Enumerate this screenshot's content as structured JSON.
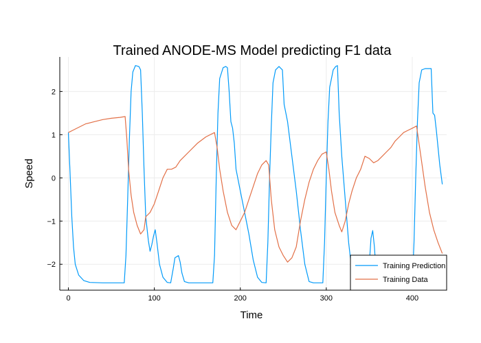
{
  "chart_data": {
    "type": "line",
    "title": "Trained ANODE-MS Model predicting F1 data",
    "xlabel": "Time",
    "ylabel": "Speed",
    "xlim": [
      -10,
      440
    ],
    "ylim": [
      -2.6,
      2.8
    ],
    "xticks": [
      0,
      100,
      200,
      300,
      400
    ],
    "yticks": [
      -2,
      -1,
      0,
      1,
      2
    ],
    "grid": true,
    "legend_position": "bottom-right",
    "series": [
      {
        "name": "Training Prediction",
        "color": "#009af9",
        "points": [
          [
            0,
            1.05
          ],
          [
            2,
            0.1
          ],
          [
            4,
            -0.9
          ],
          [
            6,
            -1.6
          ],
          [
            8,
            -2.0
          ],
          [
            12,
            -2.25
          ],
          [
            18,
            -2.38
          ],
          [
            25,
            -2.42
          ],
          [
            40,
            -2.43
          ],
          [
            55,
            -2.43
          ],
          [
            65,
            -2.43
          ],
          [
            67,
            -1.8
          ],
          [
            69,
            -0.5
          ],
          [
            71,
            0.9
          ],
          [
            73,
            2.0
          ],
          [
            75,
            2.45
          ],
          [
            78,
            2.6
          ],
          [
            82,
            2.58
          ],
          [
            84,
            2.5
          ],
          [
            86,
            1.5
          ],
          [
            88,
            0.2
          ],
          [
            90,
            -0.9
          ],
          [
            93,
            -1.45
          ],
          [
            95,
            -1.7
          ],
          [
            97,
            -1.55
          ],
          [
            99,
            -1.35
          ],
          [
            101,
            -1.2
          ],
          [
            103,
            -1.5
          ],
          [
            106,
            -2.0
          ],
          [
            110,
            -2.3
          ],
          [
            115,
            -2.42
          ],
          [
            119,
            -2.43
          ],
          [
            122,
            -2.1
          ],
          [
            124,
            -1.85
          ],
          [
            128,
            -1.8
          ],
          [
            130,
            -1.95
          ],
          [
            132,
            -2.2
          ],
          [
            135,
            -2.4
          ],
          [
            140,
            -2.43
          ],
          [
            155,
            -2.43
          ],
          [
            168,
            -2.43
          ],
          [
            170,
            -1.8
          ],
          [
            172,
            0.0
          ],
          [
            174,
            1.5
          ],
          [
            176,
            2.3
          ],
          [
            180,
            2.55
          ],
          [
            183,
            2.58
          ],
          [
            185,
            2.55
          ],
          [
            187,
            2.0
          ],
          [
            189,
            1.3
          ],
          [
            191,
            1.15
          ],
          [
            193,
            0.8
          ],
          [
            195,
            0.2
          ],
          [
            200,
            -0.3
          ],
          [
            205,
            -0.8
          ],
          [
            210,
            -1.3
          ],
          [
            215,
            -1.9
          ],
          [
            220,
            -2.3
          ],
          [
            225,
            -2.42
          ],
          [
            230,
            -2.43
          ],
          [
            232,
            -1.5
          ],
          [
            234,
            0.0
          ],
          [
            236,
            1.2
          ],
          [
            238,
            2.2
          ],
          [
            241,
            2.5
          ],
          [
            245,
            2.58
          ],
          [
            249,
            2.5
          ],
          [
            251,
            1.7
          ],
          [
            255,
            1.3
          ],
          [
            260,
            0.5
          ],
          [
            265,
            -0.3
          ],
          [
            270,
            -1.2
          ],
          [
            275,
            -2.0
          ],
          [
            280,
            -2.4
          ],
          [
            285,
            -2.43
          ],
          [
            296,
            -2.43
          ],
          [
            298,
            -1.5
          ],
          [
            300,
            0.0
          ],
          [
            302,
            1.3
          ],
          [
            304,
            2.1
          ],
          [
            306,
            2.3
          ],
          [
            308,
            2.5
          ],
          [
            311,
            2.58
          ],
          [
            313,
            2.6
          ],
          [
            315,
            1.5
          ],
          [
            318,
            0.5
          ],
          [
            322,
            -0.5
          ],
          [
            326,
            -1.5
          ],
          [
            330,
            -2.2
          ],
          [
            335,
            -2.4
          ],
          [
            340,
            -2.43
          ],
          [
            348,
            -2.43
          ],
          [
            350,
            -2.0
          ],
          [
            352,
            -1.4
          ],
          [
            354,
            -1.22
          ],
          [
            356,
            -1.6
          ],
          [
            358,
            -2.2
          ],
          [
            360,
            -2.4
          ],
          [
            365,
            -2.43
          ],
          [
            400,
            -2.43
          ],
          [
            402,
            -1.5
          ],
          [
            404,
            0.0
          ],
          [
            406,
            1.3
          ],
          [
            408,
            2.2
          ],
          [
            411,
            2.5
          ],
          [
            415,
            2.53
          ],
          [
            422,
            2.53
          ],
          [
            424,
            1.5
          ],
          [
            426,
            1.45
          ],
          [
            428,
            1.1
          ],
          [
            432,
            0.3
          ],
          [
            435,
            -0.15
          ]
        ]
      },
      {
        "name": "Training Data",
        "color": "#e26f46",
        "points": [
          [
            0,
            1.05
          ],
          [
            5,
            1.1
          ],
          [
            10,
            1.15
          ],
          [
            20,
            1.25
          ],
          [
            30,
            1.3
          ],
          [
            40,
            1.35
          ],
          [
            50,
            1.38
          ],
          [
            60,
            1.4
          ],
          [
            66,
            1.42
          ],
          [
            68,
            0.9
          ],
          [
            70,
            0.2
          ],
          [
            73,
            -0.4
          ],
          [
            76,
            -0.8
          ],
          [
            80,
            -1.1
          ],
          [
            84,
            -1.3
          ],
          [
            88,
            -1.2
          ],
          [
            90,
            -0.9
          ],
          [
            95,
            -0.8
          ],
          [
            100,
            -0.6
          ],
          [
            105,
            -0.3
          ],
          [
            110,
            0.0
          ],
          [
            115,
            0.2
          ],
          [
            120,
            0.2
          ],
          [
            125,
            0.25
          ],
          [
            130,
            0.4
          ],
          [
            140,
            0.6
          ],
          [
            150,
            0.8
          ],
          [
            160,
            0.95
          ],
          [
            170,
            1.05
          ],
          [
            173,
            0.7
          ],
          [
            176,
            0.2
          ],
          [
            180,
            -0.3
          ],
          [
            185,
            -0.8
          ],
          [
            190,
            -1.1
          ],
          [
            195,
            -1.2
          ],
          [
            200,
            -1.0
          ],
          [
            205,
            -0.8
          ],
          [
            210,
            -0.5
          ],
          [
            215,
            -0.2
          ],
          [
            220,
            0.1
          ],
          [
            225,
            0.3
          ],
          [
            230,
            0.4
          ],
          [
            233,
            0.3
          ],
          [
            236,
            -0.5
          ],
          [
            240,
            -1.2
          ],
          [
            245,
            -1.6
          ],
          [
            250,
            -1.8
          ],
          [
            255,
            -1.95
          ],
          [
            260,
            -1.85
          ],
          [
            265,
            -1.6
          ],
          [
            270,
            -1.0
          ],
          [
            275,
            -0.5
          ],
          [
            280,
            -0.1
          ],
          [
            285,
            0.2
          ],
          [
            290,
            0.4
          ],
          [
            295,
            0.55
          ],
          [
            300,
            0.6
          ],
          [
            303,
            0.2
          ],
          [
            306,
            -0.3
          ],
          [
            310,
            -0.8
          ],
          [
            315,
            -1.1
          ],
          [
            318,
            -1.25
          ],
          [
            322,
            -1.0
          ],
          [
            326,
            -0.6
          ],
          [
            330,
            -0.3
          ],
          [
            335,
            0.0
          ],
          [
            340,
            0.2
          ],
          [
            345,
            0.5
          ],
          [
            350,
            0.45
          ],
          [
            355,
            0.35
          ],
          [
            360,
            0.4
          ],
          [
            365,
            0.5
          ],
          [
            370,
            0.6
          ],
          [
            375,
            0.7
          ],
          [
            380,
            0.85
          ],
          [
            385,
            0.95
          ],
          [
            390,
            1.05
          ],
          [
            395,
            1.1
          ],
          [
            400,
            1.15
          ],
          [
            405,
            1.2
          ],
          [
            410,
            0.5
          ],
          [
            415,
            -0.2
          ],
          [
            420,
            -0.8
          ],
          [
            425,
            -1.2
          ],
          [
            430,
            -1.5
          ],
          [
            435,
            -1.75
          ]
        ]
      }
    ]
  }
}
